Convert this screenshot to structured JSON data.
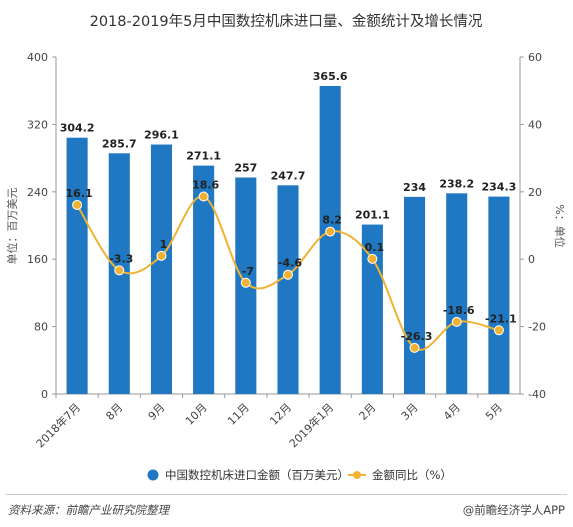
{
  "chart_data": {
    "type": "bar",
    "title": "2018-2019年5月中国数控机床进口量、金额统计及增长情况",
    "categories": [
      "2018年7月",
      "8月",
      "9月",
      "10月",
      "11月",
      "12月",
      "2019年1月",
      "2月",
      "3月",
      "4月",
      "5月"
    ],
    "series": [
      {
        "name": "中国数控机床进口金额（百万美元）",
        "type": "bar",
        "axis": "left",
        "color": "#1f78c1",
        "values": [
          304.2,
          285.7,
          296.1,
          271.1,
          257,
          247.7,
          365.6,
          201.1,
          234,
          238.2,
          234.3
        ]
      },
      {
        "name": "金额同比（%）",
        "type": "line",
        "axis": "right",
        "color": "#f0b232",
        "values": [
          16.1,
          -3.3,
          1,
          18.6,
          -7,
          -4.6,
          8.2,
          0.1,
          -26.3,
          -18.6,
          -21.1
        ]
      }
    ],
    "ylabel": "单位：百万美元",
    "y2label": "%：单位",
    "ylim": [
      0,
      400
    ],
    "yticks": [
      0,
      80,
      160,
      240,
      320,
      400
    ],
    "y2lim": [
      -40,
      60
    ],
    "y2ticks": [
      -40,
      -20,
      0,
      20,
      40,
      60
    ],
    "grid": false,
    "legend_position": "bottom"
  },
  "footer": {
    "source": "资料来源：前瞻产业研究院整理",
    "brand": "@前瞻经济学人APP"
  }
}
